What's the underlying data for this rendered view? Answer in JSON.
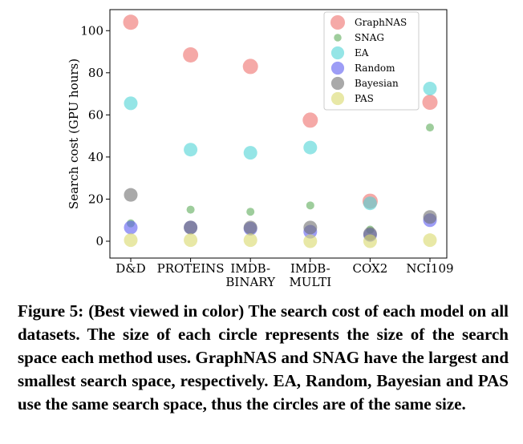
{
  "chart_data": {
    "type": "scatter",
    "ylabel": "Search cost (GPU hours)",
    "xlabel": "",
    "ylim": [
      -8,
      110
    ],
    "yticks": [
      0,
      20,
      40,
      60,
      80,
      100
    ],
    "categories": [
      "D&D",
      "PROTEINS",
      "IMDB-\nBINARY",
      "IMDB-\nMULTI",
      "COX2",
      "NCI109"
    ],
    "legend_position": "top-right",
    "series": [
      {
        "name": "GraphNAS",
        "color": "#ef6f6c",
        "size": "large",
        "values": [
          104,
          88.5,
          83,
          57.5,
          19,
          66
        ]
      },
      {
        "name": "SNAG",
        "color": "#5dac5a",
        "size": "small",
        "values": [
          8.5,
          15,
          14,
          17,
          5.5,
          54
        ]
      },
      {
        "name": "EA",
        "color": "#4fd3d6",
        "size": "medium",
        "values": [
          65.5,
          43.5,
          42,
          44.5,
          18,
          72.5
        ]
      },
      {
        "name": "Random",
        "color": "#5b5bf0",
        "size": "medium",
        "values": [
          6.5,
          6.5,
          6,
          4.5,
          3,
          10
        ]
      },
      {
        "name": "Bayesian",
        "color": "#707070",
        "size": "medium",
        "values": [
          22,
          6.5,
          6.5,
          6.5,
          3.5,
          11.5
        ]
      },
      {
        "name": "PAS",
        "color": "#d9d96a",
        "size": "medium",
        "values": [
          0.5,
          0.5,
          0.5,
          0,
          0,
          0.5
        ]
      }
    ]
  },
  "caption": {
    "label": "Figure 5:",
    "text": "(Best viewed in color) The search cost of each model on all datasets. The size of each circle represents the size of the search space each method uses. GraphNAS and SNAG have the largest and smallest search space, respectively. EA, Random, Bayesian and PAS use the same search space, thus the circles are of the same size."
  }
}
